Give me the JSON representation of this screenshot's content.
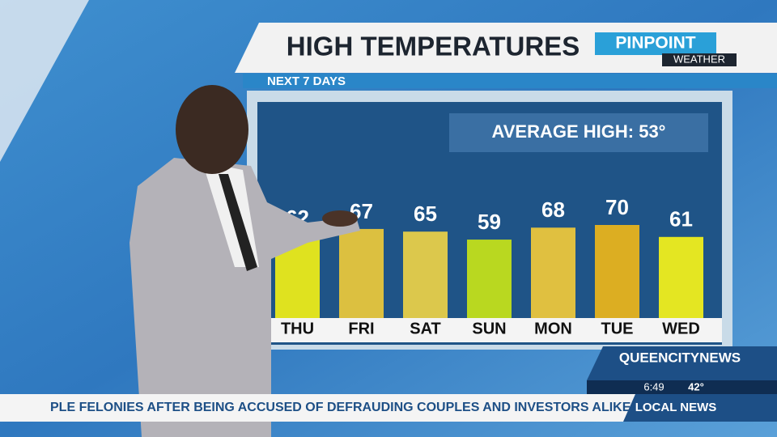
{
  "header": {
    "title": "HIGH TEMPERATURES",
    "subtitle": "NEXT 7 DAYS",
    "logo_main": "PINPOINT",
    "logo_sub": "WEATHER"
  },
  "chart_data": {
    "type": "bar",
    "annotation": "AVERAGE HIGH: 53°",
    "categories": [
      "THU",
      "FRI",
      "SAT",
      "SUN",
      "MON",
      "TUE",
      "WED"
    ],
    "values": [
      62,
      67,
      65,
      59,
      68,
      70,
      61
    ],
    "colors": [
      "#dfe21f",
      "#dcc040",
      "#dcc84c",
      "#b9d820",
      "#e0c040",
      "#dcae22",
      "#e4e622"
    ]
  },
  "lower_third": {
    "station": "QUEENCITYNEWS",
    "time": "6:49",
    "temperature": "42°",
    "ticker": "PLE FELONIES AFTER BEING ACCUSED OF DEFRAUDING COUPLES AND INVESTORS ALIKE. ACCOR",
    "segment": "LOCAL NEWS"
  }
}
